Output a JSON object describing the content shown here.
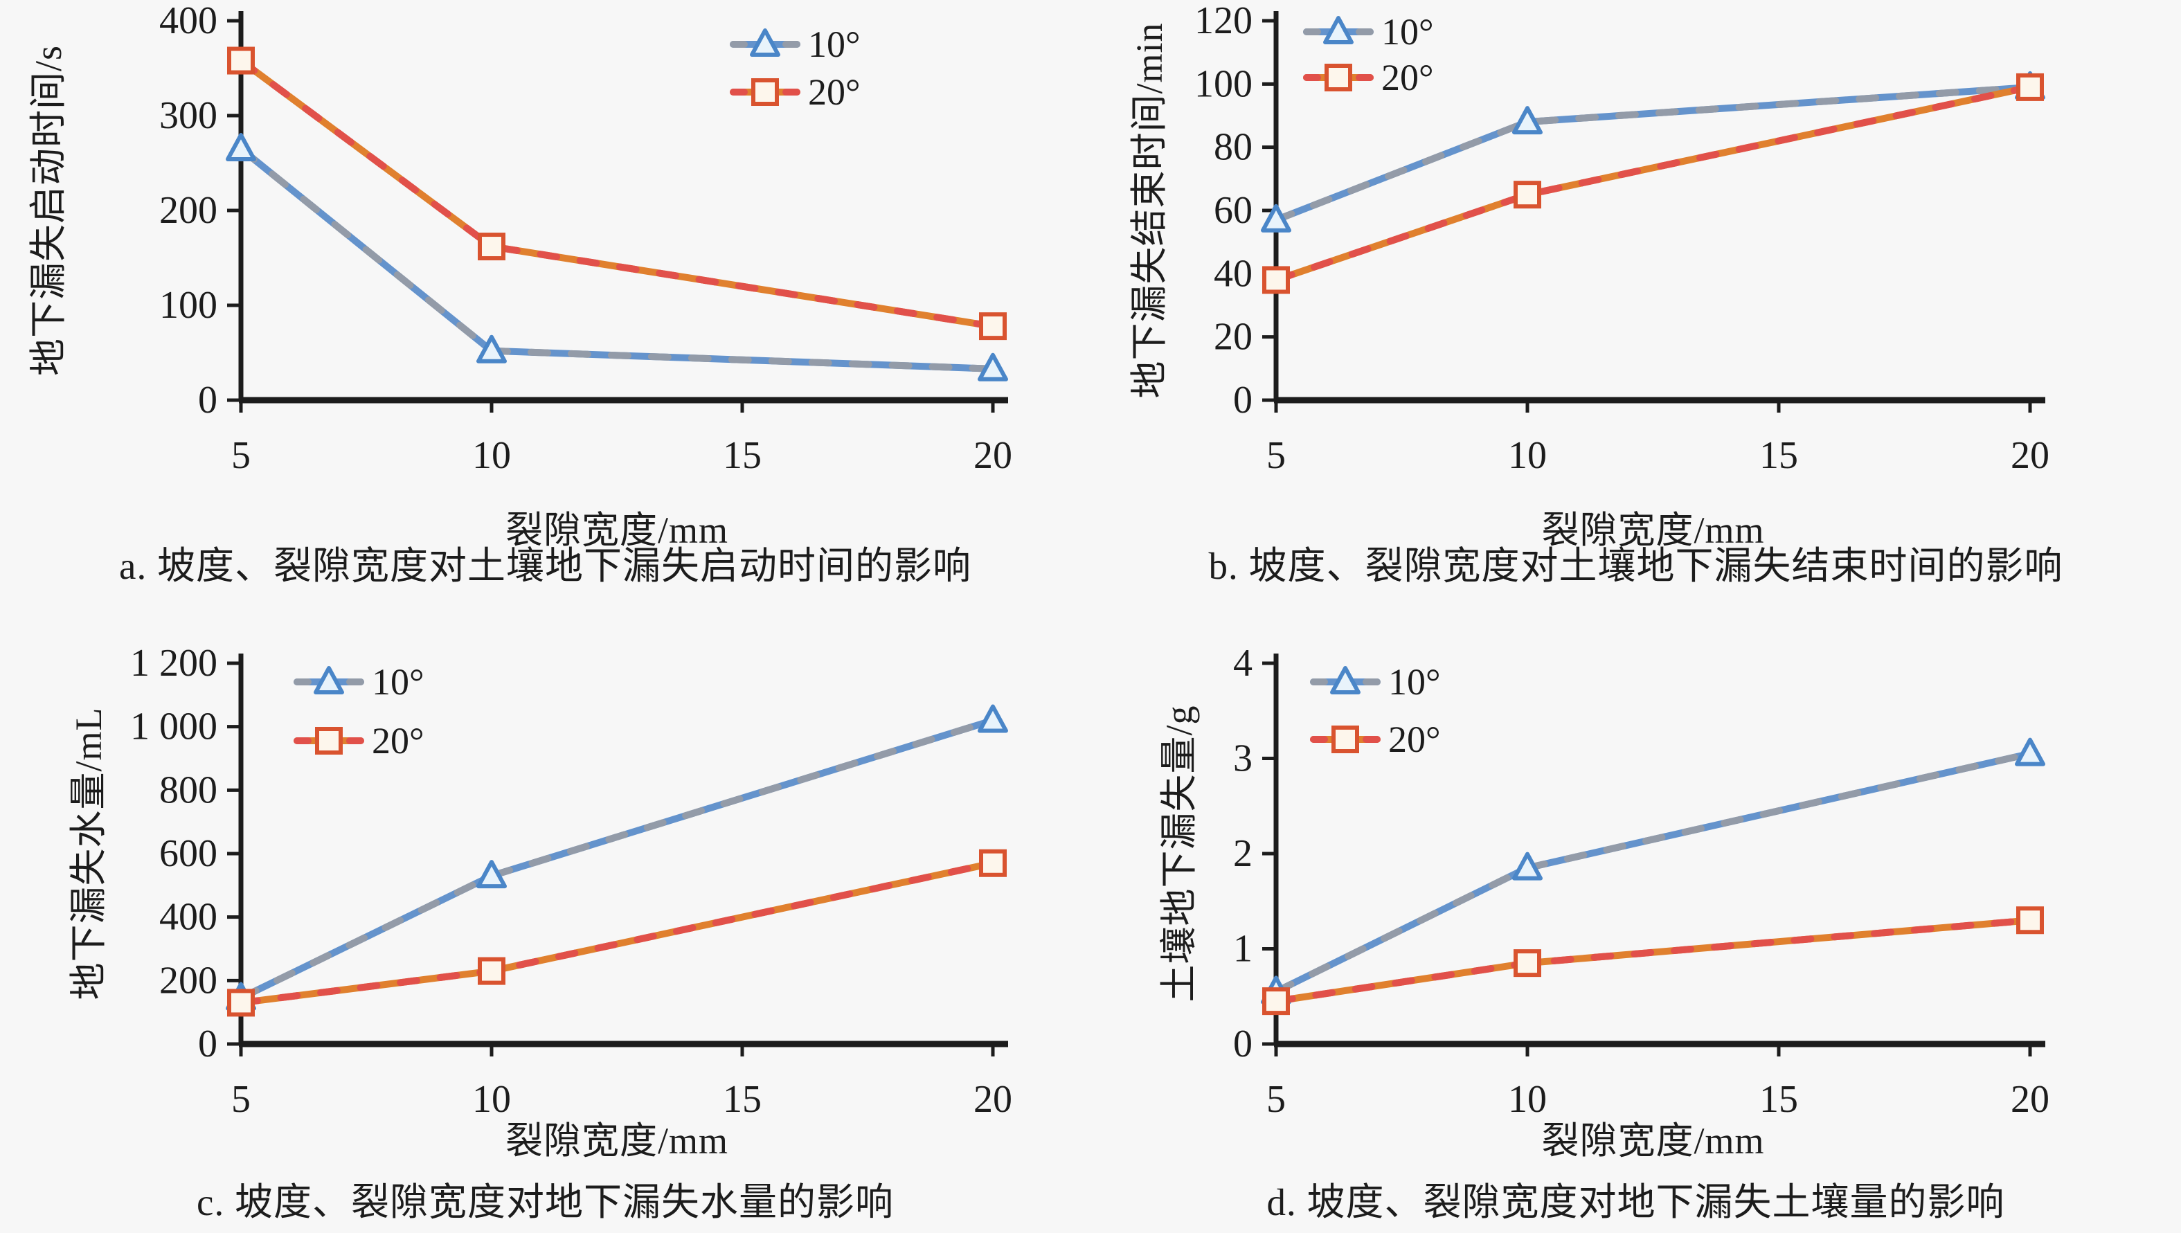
{
  "figure": {
    "background": "#f7f7f7",
    "axis_color": "#1c1c1c",
    "text_color": "#1c1c1c"
  },
  "series_styles": [
    {
      "name": "10°",
      "marker": "triangle",
      "line_color": "#6493cc",
      "line_dash_color": "#939ba8",
      "marker_stroke": "#4a86c8",
      "marker_fill": "#e8f3fb"
    },
    {
      "name": "20°",
      "marker": "square",
      "line_color": "#e0802e",
      "line_dash_color": "#e1504a",
      "marker_stroke": "#d9532f",
      "marker_fill": "#fdf6ec"
    }
  ],
  "chart_data": [
    {
      "id": "a",
      "type": "line",
      "xlabel": "裂隙宽度/mm",
      "ylabel": "地下漏失启动时间/s",
      "caption": "a. 坡度、裂隙宽度对土壤地下漏失启动时间的影响",
      "x": [
        5,
        10,
        20
      ],
      "xticks": [
        5,
        10,
        15,
        20
      ],
      "xlim": [
        5,
        20
      ],
      "ylim": [
        0,
        400
      ],
      "yticks": [
        0,
        100,
        200,
        300,
        400
      ],
      "ytick_labels": [
        "0",
        "100",
        "200",
        "300",
        "400"
      ],
      "grid": false,
      "legend_position": "inside-top-right",
      "series": [
        {
          "name": "10°",
          "values": [
            265,
            52,
            33
          ]
        },
        {
          "name": "20°",
          "values": [
            358,
            162,
            78
          ]
        }
      ]
    },
    {
      "id": "b",
      "type": "line",
      "xlabel": "裂隙宽度/mm",
      "ylabel": "地下漏失结束时间/min",
      "caption": "b. 坡度、裂隙宽度对土壤地下漏失结束时间的影响",
      "x": [
        5,
        10,
        20
      ],
      "xticks": [
        5,
        10,
        15,
        20
      ],
      "xlim": [
        5,
        20
      ],
      "ylim": [
        0,
        120
      ],
      "yticks": [
        0,
        20,
        40,
        60,
        80,
        100,
        120
      ],
      "ytick_labels": [
        "0",
        "20",
        "40",
        "60",
        "80",
        "100",
        "120"
      ],
      "grid": false,
      "legend_position": "inside-top-left",
      "series": [
        {
          "name": "10°",
          "values": [
            57,
            88,
            99
          ]
        },
        {
          "name": "20°",
          "values": [
            38,
            65,
            99
          ]
        }
      ]
    },
    {
      "id": "c",
      "type": "line",
      "xlabel": "裂隙宽度/mm",
      "ylabel": "地下漏失水量/mL",
      "caption": "c. 坡度、裂隙宽度对地下漏失水量的影响",
      "x": [
        5,
        10,
        20
      ],
      "xticks": [
        5,
        10,
        15,
        20
      ],
      "xlim": [
        5,
        20
      ],
      "ylim": [
        0,
        1200
      ],
      "yticks": [
        0,
        200,
        400,
        600,
        800,
        1000,
        1200
      ],
      "ytick_labels": [
        "0",
        "200",
        "400",
        "600",
        "800",
        "1 000",
        "1 200"
      ],
      "grid": false,
      "legend_position": "inside-top-left",
      "series": [
        {
          "name": "10°",
          "values": [
            145,
            530,
            1020
          ]
        },
        {
          "name": "20°",
          "values": [
            130,
            230,
            570
          ]
        }
      ]
    },
    {
      "id": "d",
      "type": "line",
      "xlabel": "裂隙宽度/mm",
      "ylabel": "土壤地下漏失量/g",
      "caption": "d. 坡度、裂隙宽度对地下漏失土壤量的影响",
      "x": [
        5,
        10,
        20
      ],
      "xticks": [
        5,
        10,
        15,
        20
      ],
      "xlim": [
        5,
        20
      ],
      "ylim": [
        0,
        4
      ],
      "yticks": [
        0,
        1,
        2,
        3,
        4
      ],
      "ytick_labels": [
        "0",
        "1",
        "2",
        "3",
        "4"
      ],
      "grid": false,
      "legend_position": "inside-top-left",
      "series": [
        {
          "name": "10°",
          "values": [
            0.55,
            1.85,
            3.05
          ]
        },
        {
          "name": "20°",
          "values": [
            0.45,
            0.85,
            1.3
          ]
        }
      ]
    }
  ]
}
